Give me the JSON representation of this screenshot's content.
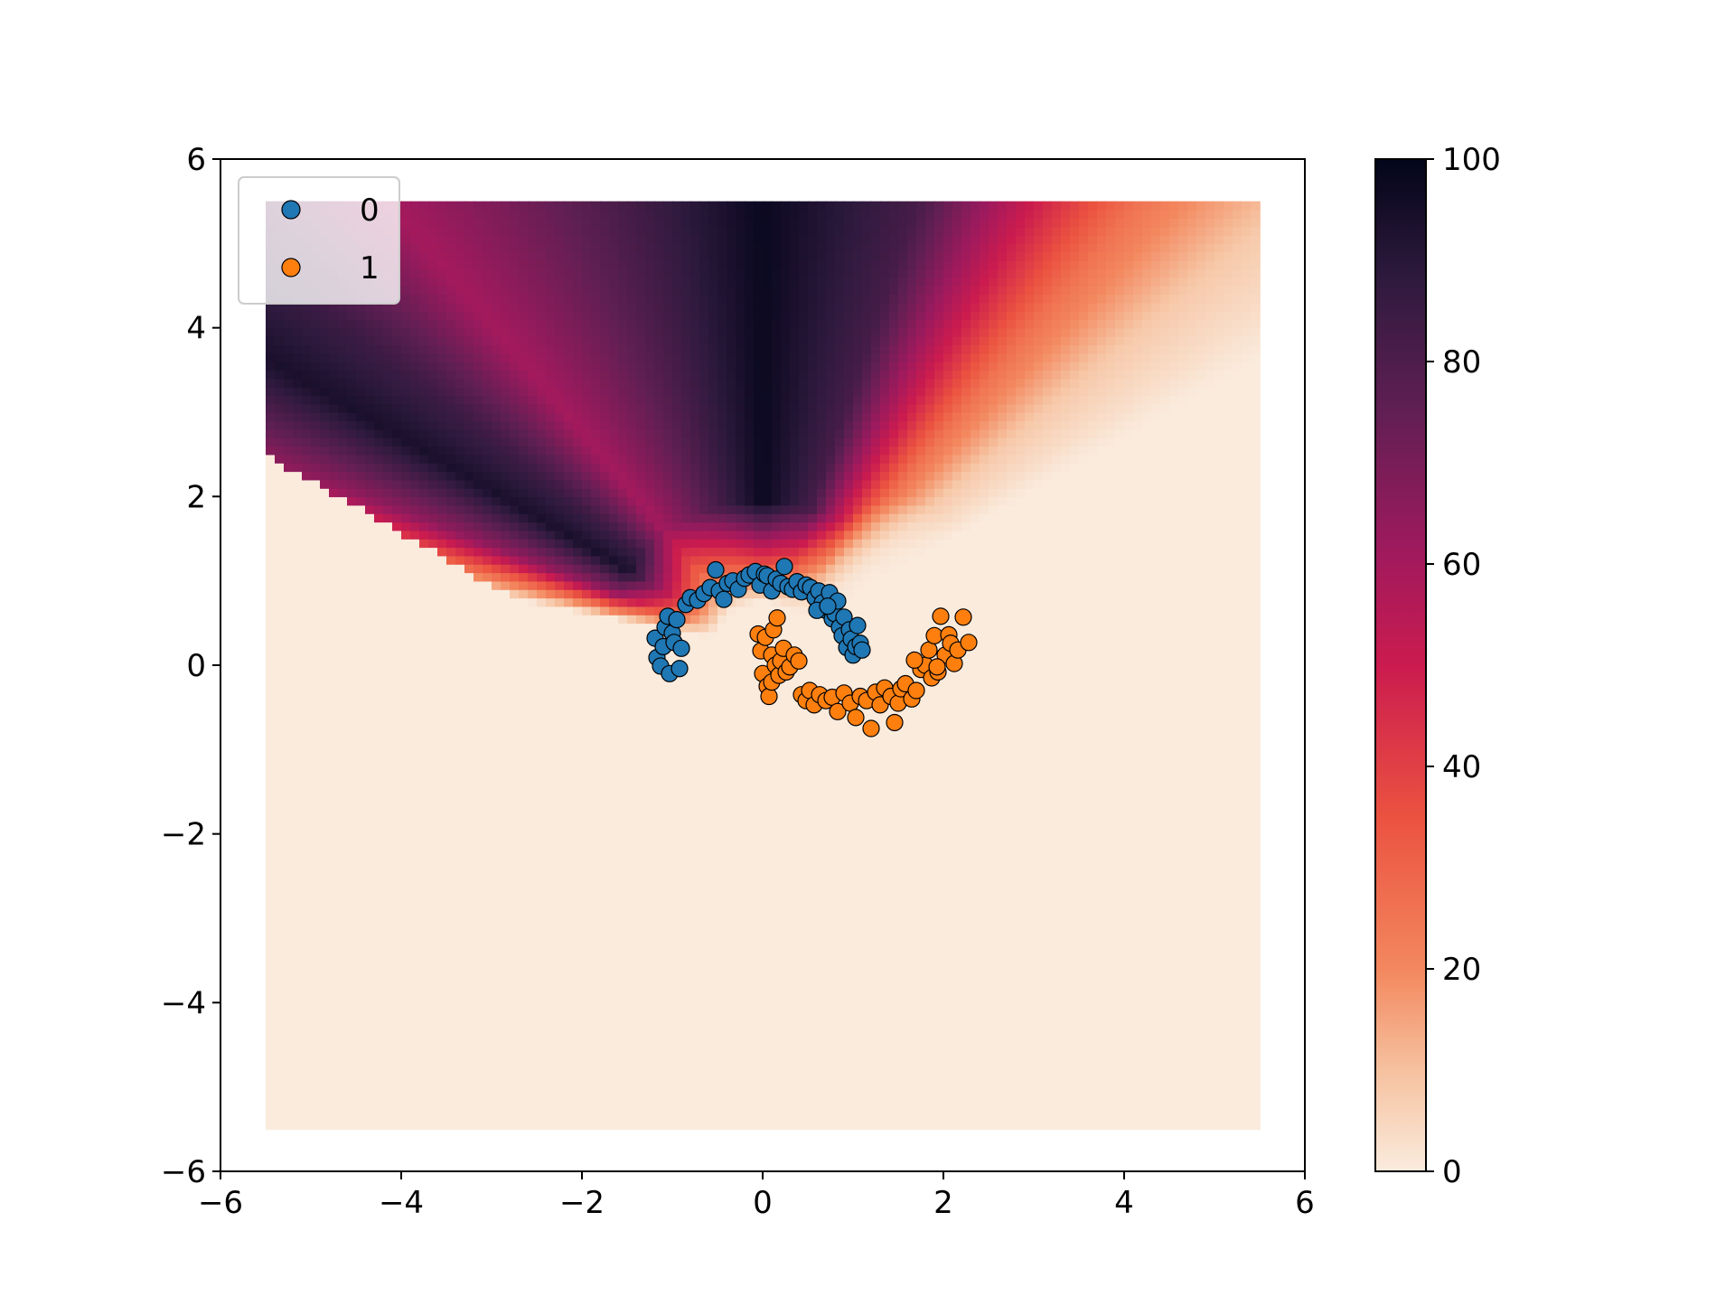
{
  "chart_data": {
    "type": "scatter",
    "title": "",
    "xlabel": "",
    "ylabel": "",
    "xlim": [
      -6,
      6
    ],
    "ylim": [
      -6,
      6
    ],
    "grid": false,
    "x_ticks": [
      -6,
      -4,
      -2,
      0,
      2,
      4,
      6
    ],
    "x_tick_labels": [
      "−6",
      "−4",
      "−2",
      "0",
      "2",
      "4",
      "6"
    ],
    "y_ticks": [
      -6,
      -4,
      -2,
      0,
      2,
      4,
      6
    ],
    "y_tick_labels": [
      "−6",
      "−4",
      "−2",
      "0",
      "2",
      "4",
      "6"
    ],
    "legend": {
      "placement": "top-left"
    },
    "background_field": {
      "type": "heatmap",
      "extent": {
        "xmin": -5.5,
        "xmax": 5.5,
        "ymin": -5.5,
        "ymax": 5.5
      },
      "colorbar": {
        "min": 0,
        "max": 100,
        "ticks": [
          0,
          20,
          40,
          60,
          80,
          100
        ],
        "tick_labels": [
          "0",
          "20",
          "40",
          "60",
          "80",
          "100"
        ]
      },
      "colormap_stops": [
        {
          "value": 0,
          "color": "#faebdd"
        },
        {
          "value": 10,
          "color": "#f6c19f"
        },
        {
          "value": 20,
          "color": "#f3875e"
        },
        {
          "value": 35,
          "color": "#eb5240"
        },
        {
          "value": 50,
          "color": "#cb1b4f"
        },
        {
          "value": 62,
          "color": "#9c1a5e"
        },
        {
          "value": 75,
          "color": "#611f53"
        },
        {
          "value": 88,
          "color": "#2f1a3e"
        },
        {
          "value": 100,
          "color": "#03051a"
        }
      ]
    },
    "series": [
      {
        "name": "0",
        "color": "#1f77b4",
        "points": [
          [
            -1.19,
            0.32
          ],
          [
            -1.17,
            0.09
          ],
          [
            -1.13,
            -0.01
          ],
          [
            -1.1,
            0.22
          ],
          [
            -1.08,
            0.45
          ],
          [
            -1.05,
            0.58
          ],
          [
            -1.03,
            -0.1
          ],
          [
            -1.0,
            0.38
          ],
          [
            -0.98,
            0.27
          ],
          [
            -0.95,
            0.54
          ],
          [
            -0.92,
            -0.04
          ],
          [
            -0.9,
            0.2
          ],
          [
            -0.85,
            0.72
          ],
          [
            -0.8,
            0.8
          ],
          [
            -0.72,
            0.77
          ],
          [
            -0.65,
            0.85
          ],
          [
            -0.58,
            0.92
          ],
          [
            -0.52,
            1.13
          ],
          [
            -0.48,
            0.88
          ],
          [
            -0.43,
            0.78
          ],
          [
            -0.39,
            0.97
          ],
          [
            -0.33,
            1.0
          ],
          [
            -0.27,
            0.9
          ],
          [
            -0.2,
            1.03
          ],
          [
            -0.15,
            1.07
          ],
          [
            -0.08,
            1.11
          ],
          [
            -0.03,
            0.95
          ],
          [
            0.02,
            1.08
          ],
          [
            0.05,
            1.06
          ],
          [
            0.1,
            0.88
          ],
          [
            0.15,
            1.02
          ],
          [
            0.2,
            0.97
          ],
          [
            0.24,
            1.17
          ],
          [
            0.28,
            0.93
          ],
          [
            0.33,
            0.9
          ],
          [
            0.38,
            0.99
          ],
          [
            0.43,
            0.87
          ],
          [
            0.48,
            0.95
          ],
          [
            0.53,
            0.92
          ],
          [
            0.58,
            0.8
          ],
          [
            0.62,
            0.88
          ],
          [
            0.66,
            0.74
          ],
          [
            0.7,
            0.65
          ],
          [
            0.74,
            0.86
          ],
          [
            0.77,
            0.55
          ],
          [
            0.8,
            0.61
          ],
          [
            0.83,
            0.76
          ],
          [
            0.85,
            0.45
          ],
          [
            0.88,
            0.35
          ],
          [
            0.9,
            0.57
          ],
          [
            0.93,
            0.21
          ],
          [
            0.96,
            0.42
          ],
          [
            0.98,
            0.31
          ],
          [
            1.0,
            0.12
          ],
          [
            1.03,
            0.22
          ],
          [
            1.05,
            0.47
          ],
          [
            1.08,
            0.26
          ],
          [
            1.1,
            0.18
          ],
          [
            0.6,
            0.65
          ],
          [
            0.72,
            0.7
          ]
        ]
      },
      {
        "name": "1",
        "color": "#ff7f0e",
        "points": [
          [
            -0.05,
            0.37
          ],
          [
            -0.02,
            0.17
          ],
          [
            0.0,
            -0.1
          ],
          [
            0.03,
            0.33
          ],
          [
            0.05,
            -0.25
          ],
          [
            0.07,
            -0.37
          ],
          [
            0.1,
            0.12
          ],
          [
            0.1,
            -0.2
          ],
          [
            0.12,
            0.42
          ],
          [
            0.14,
            0.0
          ],
          [
            0.16,
            0.56
          ],
          [
            0.18,
            -0.12
          ],
          [
            0.2,
            0.05
          ],
          [
            0.23,
            0.2
          ],
          [
            0.26,
            -0.08
          ],
          [
            0.3,
            -0.02
          ],
          [
            0.35,
            0.12
          ],
          [
            0.4,
            0.05
          ],
          [
            0.43,
            -0.35
          ],
          [
            0.48,
            -0.42
          ],
          [
            0.52,
            -0.3
          ],
          [
            0.57,
            -0.47
          ],
          [
            0.63,
            -0.35
          ],
          [
            0.7,
            -0.42
          ],
          [
            0.77,
            -0.38
          ],
          [
            0.83,
            -0.55
          ],
          [
            0.9,
            -0.33
          ],
          [
            0.97,
            -0.45
          ],
          [
            1.03,
            -0.62
          ],
          [
            1.08,
            -0.37
          ],
          [
            1.15,
            -0.42
          ],
          [
            1.2,
            -0.75
          ],
          [
            1.25,
            -0.32
          ],
          [
            1.3,
            -0.47
          ],
          [
            1.35,
            -0.27
          ],
          [
            1.42,
            -0.37
          ],
          [
            1.46,
            -0.68
          ],
          [
            1.5,
            -0.45
          ],
          [
            1.53,
            -0.28
          ],
          [
            1.58,
            -0.22
          ],
          [
            1.65,
            -0.4
          ],
          [
            1.7,
            -0.3
          ],
          [
            1.75,
            -0.05
          ],
          [
            1.8,
            0.0
          ],
          [
            1.84,
            0.18
          ],
          [
            1.87,
            -0.15
          ],
          [
            1.9,
            0.35
          ],
          [
            1.94,
            -0.08
          ],
          [
            1.97,
            0.58
          ],
          [
            2.02,
            0.12
          ],
          [
            2.06,
            0.36
          ],
          [
            2.08,
            0.26
          ],
          [
            2.12,
            0.02
          ],
          [
            2.16,
            0.18
          ],
          [
            2.22,
            0.57
          ],
          [
            2.28,
            0.27
          ],
          [
            1.68,
            0.06
          ],
          [
            1.93,
            -0.02
          ]
        ]
      }
    ]
  }
}
